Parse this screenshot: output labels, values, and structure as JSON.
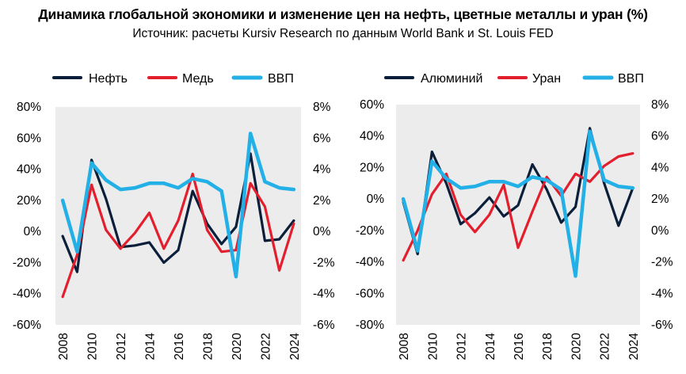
{
  "title": "Динамика глобальной экономики и изменение цен на нефть, цветные металлы и уран (%)",
  "subtitle": "Источник: расчеты Kursiv Research по данным World Bank и St. Louis FED",
  "colors": {
    "dark_navy": "#0b1f3a",
    "red": "#e31e2d",
    "light_blue": "#22b0e6",
    "plot_bg": "#ececec"
  },
  "chart_data": [
    {
      "type": "line",
      "x": [
        2008,
        2009,
        2010,
        2011,
        2012,
        2013,
        2014,
        2015,
        2016,
        2017,
        2018,
        2019,
        2020,
        2021,
        2022,
        2023,
        2024
      ],
      "x_tick_labels": [
        "2008",
        "2010",
        "2012",
        "2014",
        "2016",
        "2018",
        "2020",
        "2022",
        "2024"
      ],
      "ylim_left": [
        -60,
        80
      ],
      "yticks_left": [
        "80%",
        "60%",
        "40%",
        "20%",
        "0%",
        "-20%",
        "-40%",
        "-60%"
      ],
      "ylim_right": [
        -6,
        8
      ],
      "yticks_right": [
        "8%",
        "6%",
        "4%",
        "2%",
        "0%",
        "-2%",
        "-4%",
        "-6%"
      ],
      "legend_position": "top",
      "series": [
        {
          "name": "Нефть",
          "axis": "left",
          "color": "#0b1f3a",
          "values": [
            -3,
            -26,
            46,
            21,
            -10,
            -9,
            -7,
            -20,
            -12,
            26,
            5,
            -8,
            3,
            50,
            -6,
            -5,
            7
          ]
        },
        {
          "name": "Медь",
          "axis": "left",
          "color": "#e31e2d",
          "values": [
            -42,
            -15,
            30,
            1,
            -11,
            -1,
            12,
            -11,
            7,
            37,
            1,
            -13,
            -12,
            31,
            16,
            -25,
            5
          ]
        },
        {
          "name": "ВВП",
          "axis": "right",
          "color": "#22b0e6",
          "values": [
            2.0,
            -1.3,
            4.4,
            3.3,
            2.7,
            2.8,
            3.1,
            3.1,
            2.8,
            3.4,
            3.2,
            2.6,
            -2.9,
            6.3,
            3.2,
            2.8,
            2.7
          ]
        }
      ]
    },
    {
      "type": "line",
      "x": [
        2008,
        2009,
        2010,
        2011,
        2012,
        2013,
        2014,
        2015,
        2016,
        2017,
        2018,
        2019,
        2020,
        2021,
        2022,
        2023,
        2024
      ],
      "x_tick_labels": [
        "2008",
        "2010",
        "2012",
        "2014",
        "2016",
        "2018",
        "2020",
        "2022",
        "2024"
      ],
      "ylim_left": [
        -80,
        60
      ],
      "yticks_left": [
        "60%",
        "40%",
        "20%",
        "0%",
        "-20%",
        "-40%",
        "-60%",
        "-80%"
      ],
      "ylim_right": [
        -6,
        8
      ],
      "yticks_right": [
        "8%",
        "6%",
        "4%",
        "2%",
        "0%",
        "-2%",
        "-4%",
        "-6%"
      ],
      "legend_position": "top",
      "series": [
        {
          "name": "Алюминий",
          "axis": "left",
          "color": "#0b1f3a",
          "values": [
            -2,
            -35,
            30,
            10,
            -16,
            -9,
            1,
            -11,
            -4,
            22,
            6,
            -15,
            -5,
            45,
            10,
            -17,
            7
          ]
        },
        {
          "name": "Уран",
          "axis": "left",
          "color": "#e31e2d",
          "values": [
            -39,
            -20,
            3,
            16,
            -10,
            -21,
            -10,
            9,
            -31,
            -8,
            14,
            2,
            16,
            11,
            21,
            27,
            29
          ]
        },
        {
          "name": "ВВП",
          "axis": "right",
          "color": "#22b0e6",
          "values": [
            2.0,
            -1.3,
            4.4,
            3.3,
            2.7,
            2.8,
            3.1,
            3.1,
            2.8,
            3.4,
            3.2,
            2.6,
            -2.9,
            6.3,
            3.2,
            2.8,
            2.7
          ]
        }
      ]
    }
  ]
}
